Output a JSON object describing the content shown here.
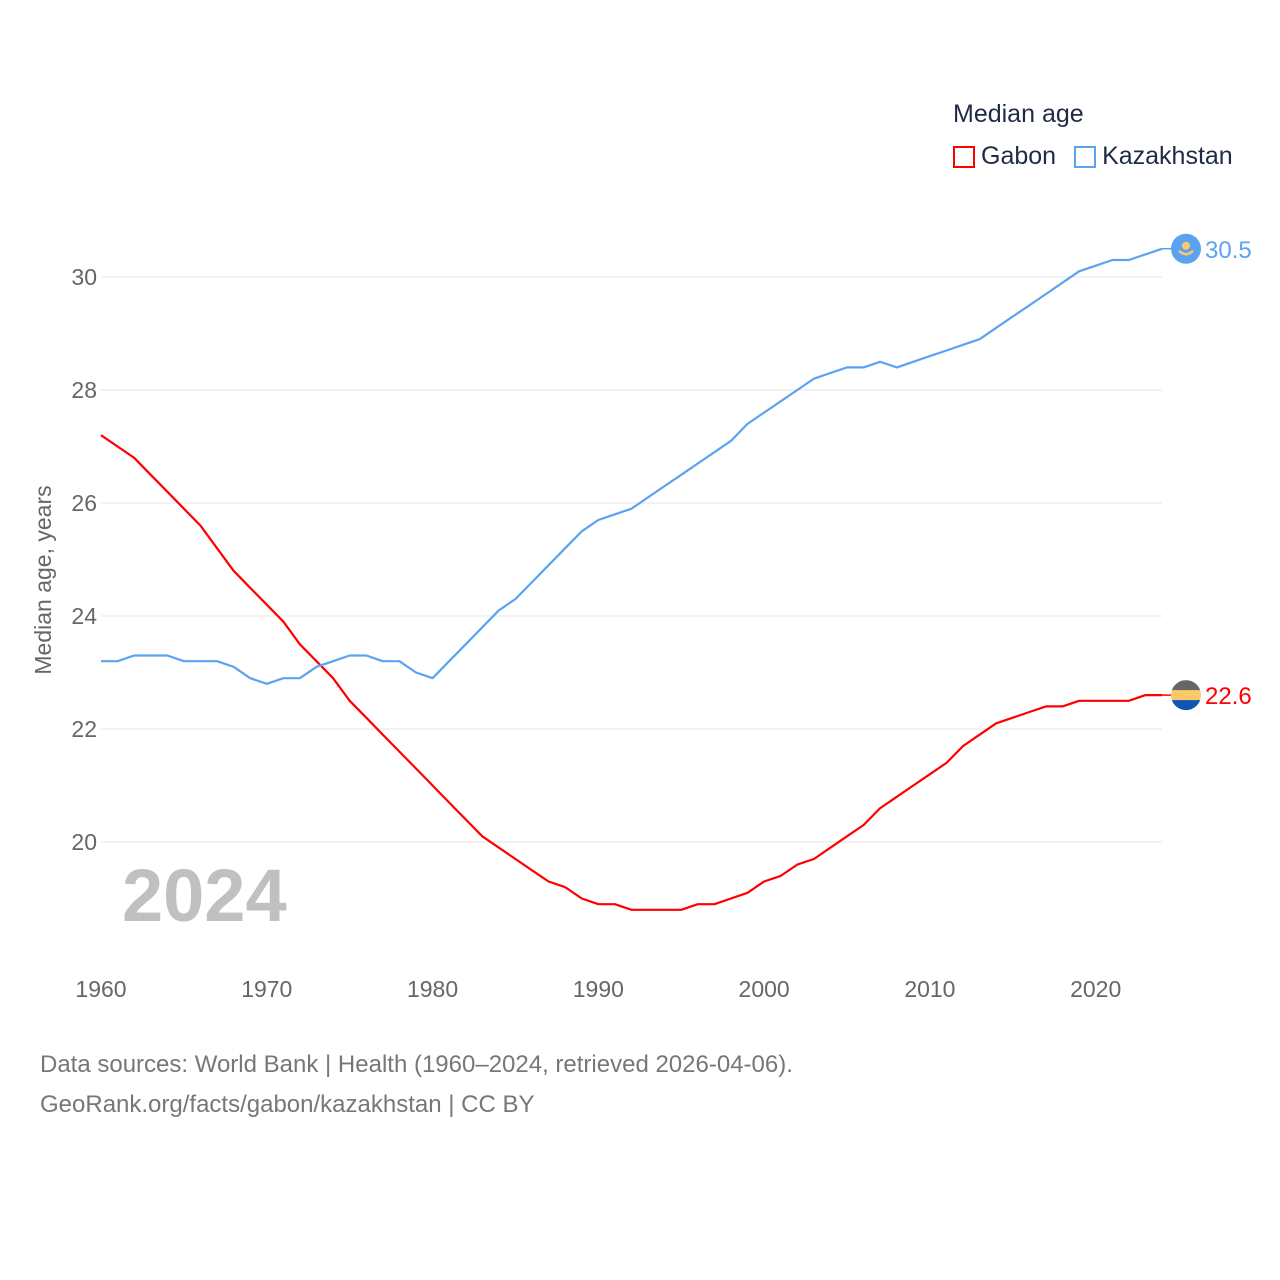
{
  "chart_data": {
    "type": "line",
    "title": "Median age",
    "xlabel": "",
    "ylabel": "Median age, years",
    "xlim": [
      1960,
      2024
    ],
    "ylim": [
      18.4,
      31
    ],
    "grid": true,
    "legend_placement": "top-right",
    "year_watermark": "2024",
    "x_ticks": [
      1960,
      1970,
      1980,
      1990,
      2000,
      2010,
      2020
    ],
    "y_ticks": [
      20,
      22,
      24,
      26,
      28,
      30
    ],
    "x": [
      1960,
      1961,
      1962,
      1963,
      1964,
      1965,
      1966,
      1967,
      1968,
      1969,
      1970,
      1971,
      1972,
      1973,
      1974,
      1975,
      1976,
      1977,
      1978,
      1979,
      1980,
      1981,
      1982,
      1983,
      1984,
      1985,
      1986,
      1987,
      1988,
      1989,
      1990,
      1991,
      1992,
      1993,
      1994,
      1995,
      1996,
      1997,
      1998,
      1999,
      2000,
      2001,
      2002,
      2003,
      2004,
      2005,
      2006,
      2007,
      2008,
      2009,
      2010,
      2011,
      2012,
      2013,
      2014,
      2015,
      2016,
      2017,
      2018,
      2019,
      2020,
      2021,
      2022,
      2023,
      2024
    ],
    "series": [
      {
        "name": "Gabon",
        "color": "#ff0000",
        "end_label": "22.6",
        "flag_colors": [
          "#666666",
          "#fcc96a",
          "#1155b4"
        ],
        "values": [
          27.2,
          27.0,
          26.8,
          26.5,
          26.2,
          25.9,
          25.6,
          25.2,
          24.8,
          24.5,
          24.2,
          23.9,
          23.5,
          23.2,
          22.9,
          22.5,
          22.2,
          21.9,
          21.6,
          21.3,
          21.0,
          20.7,
          20.4,
          20.1,
          19.9,
          19.7,
          19.5,
          19.3,
          19.2,
          19.0,
          18.9,
          18.9,
          18.8,
          18.8,
          18.8,
          18.8,
          18.9,
          18.9,
          19.0,
          19.1,
          19.3,
          19.4,
          19.6,
          19.7,
          19.9,
          20.1,
          20.3,
          20.6,
          20.8,
          21.0,
          21.2,
          21.4,
          21.7,
          21.9,
          22.1,
          22.2,
          22.3,
          22.4,
          22.4,
          22.5,
          22.5,
          22.5,
          22.5,
          22.6,
          22.6
        ]
      },
      {
        "name": "Kazakhstan",
        "color": "#5ba3f0",
        "end_label": "30.5",
        "flag_colors": [
          "#5ba3f0",
          "#fcc96a"
        ],
        "values": [
          23.2,
          23.2,
          23.3,
          23.3,
          23.3,
          23.2,
          23.2,
          23.2,
          23.1,
          22.9,
          22.8,
          22.9,
          22.9,
          23.1,
          23.2,
          23.3,
          23.3,
          23.2,
          23.2,
          23.0,
          22.9,
          23.2,
          23.5,
          23.8,
          24.1,
          24.3,
          24.6,
          24.9,
          25.2,
          25.5,
          25.7,
          25.8,
          25.9,
          26.1,
          26.3,
          26.5,
          26.7,
          26.9,
          27.1,
          27.4,
          27.6,
          27.8,
          28.0,
          28.2,
          28.3,
          28.4,
          28.4,
          28.5,
          28.4,
          28.5,
          28.6,
          28.7,
          28.8,
          28.9,
          29.1,
          29.3,
          29.5,
          29.7,
          29.9,
          30.1,
          30.2,
          30.3,
          30.3,
          30.4,
          30.5
        ]
      }
    ]
  },
  "source": {
    "line1": "Data sources: World Bank | Health (1960–2024, retrieved 2026-04-06).",
    "line2": "GeoRank.org/facts/gabon/kazakhstan | CC BY"
  }
}
